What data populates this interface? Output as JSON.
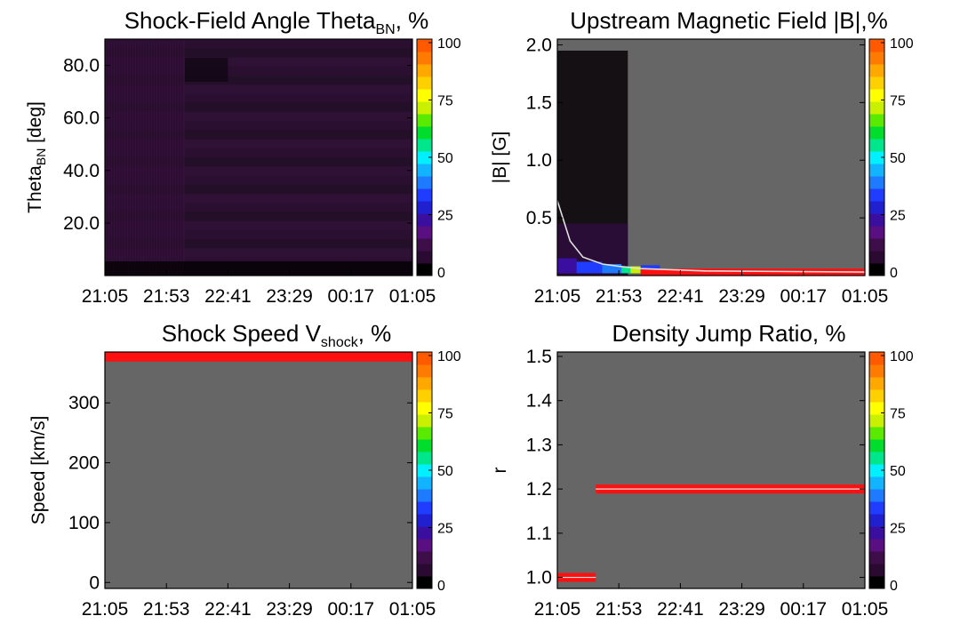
{
  "time_ticks": [
    "21:05",
    "21:53",
    "22:41",
    "23:29",
    "00:17",
    "01:05"
  ],
  "colorbar": {
    "ticks": [
      "0",
      "25",
      "50",
      "75",
      "100"
    ],
    "colors": [
      "#000000",
      "#2a0a30",
      "#3d0e4a",
      "#5a0f80",
      "#3a0fa0",
      "#2020d0",
      "#1f3cff",
      "#1e7bff",
      "#13b4ff",
      "#00f0ff",
      "#00e68c",
      "#00dd2c",
      "#5aea00",
      "#c8f000",
      "#ffff00",
      "#ffd000",
      "#ffa800",
      "#ff7a00",
      "#ff5a00"
    ]
  },
  "colors": {
    "background": "#666666",
    "highlight": "#ff1010",
    "median_line": "#e0e0e0"
  },
  "chart_data": [
    {
      "id": "theta",
      "type": "heatmap",
      "title": "Shock-Field Angle Theta",
      "title_sub": "BN",
      "title_suffix": ", %",
      "ylabel": "Theta",
      "ylabel_sub": "BN",
      "ylabel_suffix": " [deg]",
      "ylim": [
        0,
        90
      ],
      "yticks": [
        "20.0",
        "40.0",
        "60.0",
        "80.0"
      ],
      "ytick_values": [
        20,
        40,
        60,
        80
      ],
      "description_bands": [
        {
          "y_from": 80,
          "y_to": 90,
          "value_pct": 4
        },
        {
          "y_from": 0,
          "y_to": 80,
          "value_pct": 3
        }
      ]
    },
    {
      "id": "bfield",
      "type": "heatmap",
      "title": "Upstream Magnetic Field |B|,%",
      "ylabel": "|B| [G]",
      "ylim": [
        0,
        2.05
      ],
      "yticks": [
        "0.5",
        "1.0",
        "1.5",
        "2.0"
      ],
      "ytick_values": [
        0.5,
        1.0,
        1.5,
        2.0
      ],
      "data_extent_time": [
        "21:05",
        "22:00"
      ],
      "median_curve": {
        "t": [
          "21:05",
          "21:15",
          "21:25",
          "21:40",
          "21:53",
          "22:10",
          "23:00",
          "01:05"
        ],
        "B": [
          0.65,
          0.3,
          0.16,
          0.1,
          0.08,
          0.06,
          0.04,
          0.03
        ]
      },
      "saturated_band": {
        "t_from": "22:10",
        "t_to": "01:05",
        "B": 0.03,
        "value_pct": 100
      }
    },
    {
      "id": "speed",
      "type": "heatmap",
      "title": "Shock Speed V",
      "title_sub": "shock",
      "title_suffix": ", %",
      "ylabel": "Speed [km/s]",
      "ylim": [
        -10,
        385
      ],
      "yticks": [
        "0",
        "100",
        "200",
        "300"
      ],
      "ytick_values": [
        0,
        100,
        200,
        300
      ],
      "saturated_band": {
        "t_from": "21:05",
        "t_to": "01:05",
        "y": 378,
        "value_pct": 100
      }
    },
    {
      "id": "density",
      "type": "heatmap",
      "title": "Density Jump Ratio, %",
      "ylabel": "r",
      "ylim": [
        0.975,
        1.51
      ],
      "yticks": [
        "1.0",
        "1.1",
        "1.2",
        "1.3",
        "1.4",
        "1.5"
      ],
      "ytick_values": [
        1.0,
        1.1,
        1.2,
        1.3,
        1.4,
        1.5
      ],
      "saturated_bands": [
        {
          "t_from": "21:05",
          "t_to": "21:35",
          "y": 1.0,
          "value_pct": 100
        },
        {
          "t_from": "21:35",
          "t_to": "01:05",
          "y": 1.2,
          "value_pct": 100
        }
      ]
    }
  ]
}
